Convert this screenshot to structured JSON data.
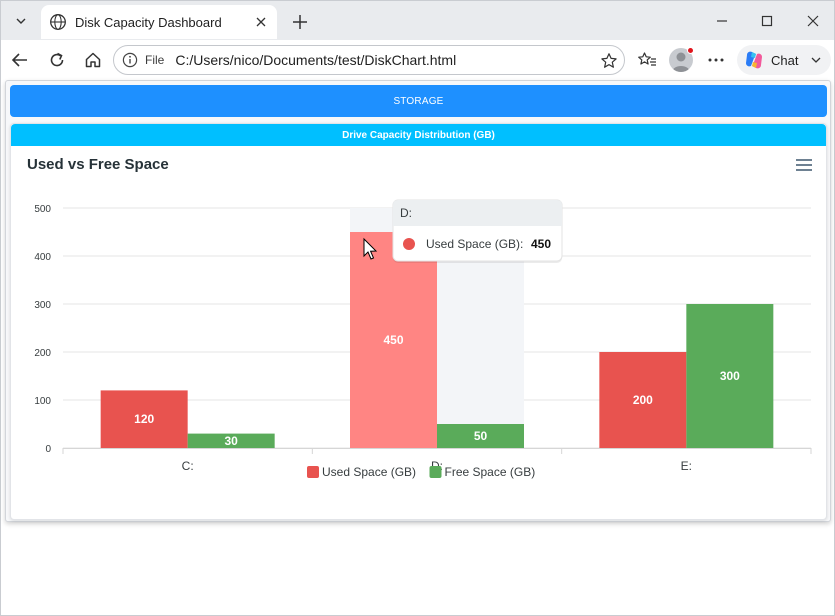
{
  "browser": {
    "tab_title": "Disk Capacity Dashboard",
    "address_scheme": "File",
    "address_url": "C:/Users/nico/Documents/test/DiskChart.html",
    "chat_label": "Chat"
  },
  "page": {
    "storage_label": "STORAGE",
    "panel_title": "Drive Capacity Distribution (GB)"
  },
  "chart_data": {
    "type": "bar",
    "title": "Used vs Free Space",
    "categories": [
      "C:",
      "D:",
      "E:"
    ],
    "series": [
      {
        "name": "Used Space (GB)",
        "values": [
          120,
          450,
          200
        ],
        "color": "#e8534f"
      },
      {
        "name": "Free Space (GB)",
        "values": [
          30,
          50,
          300
        ],
        "color": "#5aab5a"
      }
    ],
    "yticks": [
      "0",
      "100",
      "200",
      "300",
      "400",
      "500"
    ],
    "ylim": [
      0,
      500
    ],
    "legend_position": "bottom",
    "grid": true,
    "hover": {
      "category": "D:",
      "series": "Used Space (GB)",
      "value": "450",
      "highlight_color": "#ff8583"
    }
  }
}
